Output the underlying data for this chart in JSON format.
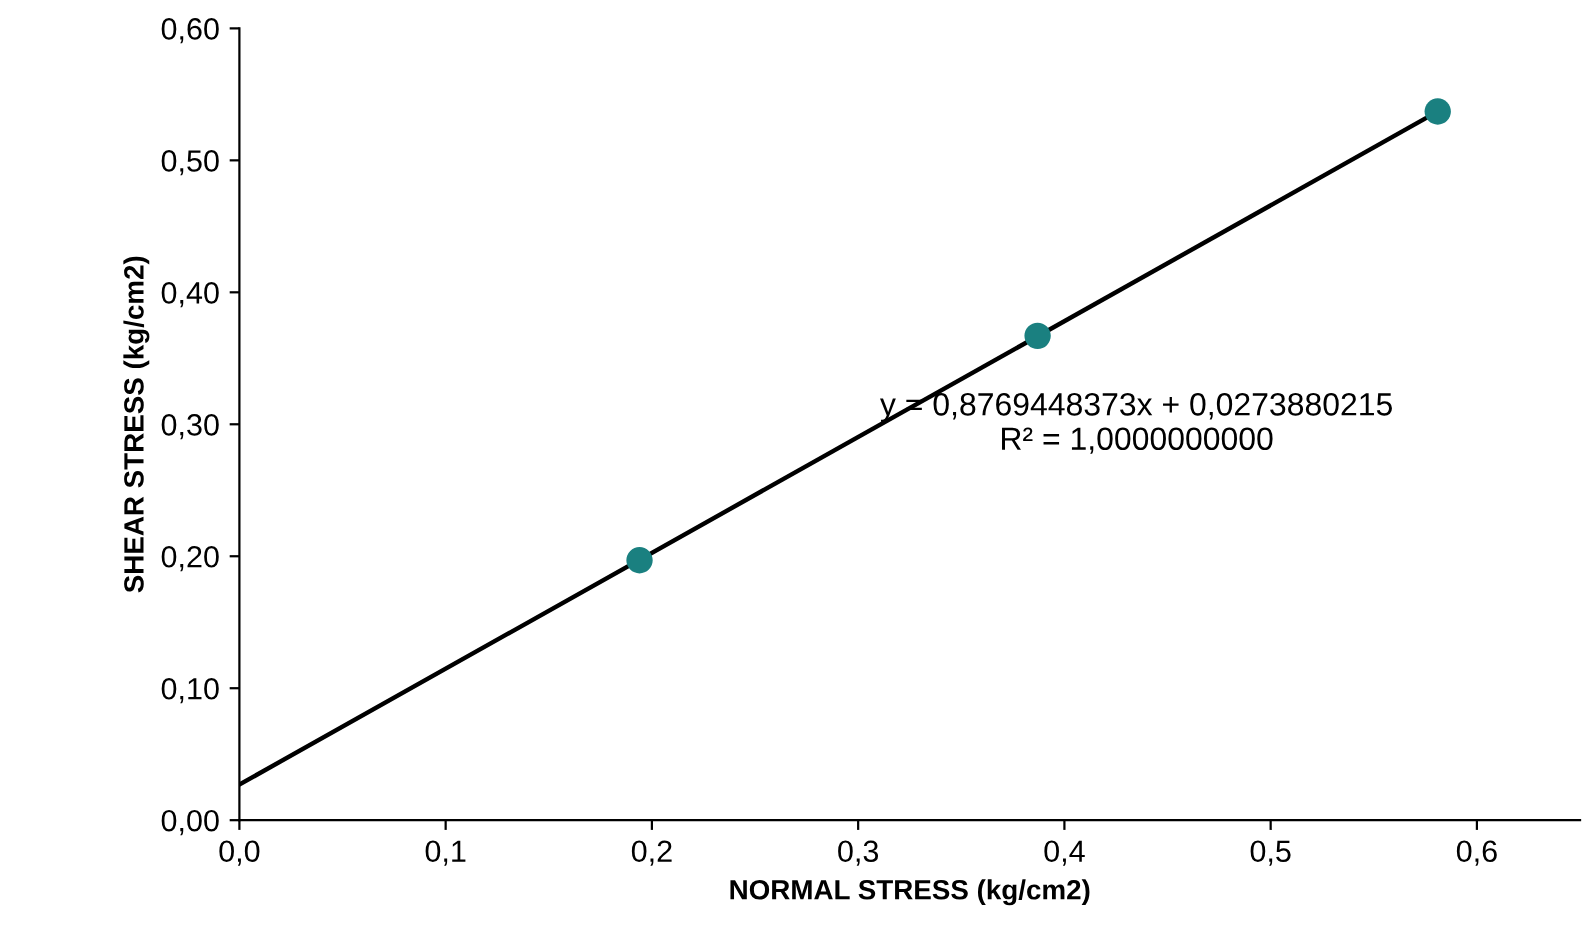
{
  "chart_data": {
    "type": "scatter",
    "xlabel": "NORMAL STRESS (kg/cm2)",
    "ylabel": "SHEAR STRESS (kg/cm2)",
    "series": [
      {
        "color": "#1a8080",
        "x": [
          0.194,
          0.387,
          0.581
        ],
        "values": [
          0.197,
          0.367,
          0.537
        ],
        "marker": "circle"
      },
      {
        "type": "line",
        "color": "#000000",
        "x": [
          0,
          0.581
        ],
        "values": [
          0.027,
          0.537
        ],
        "marker": "none"
      }
    ],
    "xlim": [
      0,
      0.65
    ],
    "ylim": [
      0,
      0.6
    ],
    "xticks": [
      {
        "value": 0,
        "label": "0,0"
      },
      {
        "value": 0.1,
        "label": "0,1"
      },
      {
        "value": 0.2,
        "label": "0,2"
      },
      {
        "value": 0.3,
        "label": "0,3"
      },
      {
        "value": 0.4,
        "label": "0,4"
      },
      {
        "value": 0.5,
        "label": "0,5"
      },
      {
        "value": 0.6,
        "label": "0,6"
      }
    ],
    "yticks": [
      {
        "value": 0,
        "label": "0,00"
      },
      {
        "value": 0.1,
        "label": "0,10"
      },
      {
        "value": 0.2,
        "label": "0,20"
      },
      {
        "value": 0.3,
        "label": "0,30"
      },
      {
        "value": 0.4,
        "label": "0,40"
      },
      {
        "value": 0.5,
        "label": "0,50"
      },
      {
        "value": 0.6,
        "label": "0,60"
      }
    ],
    "annotations": [
      "y = 0,8769448373x + 0,0273880215\nR² = 1,0000000000"
    ],
    "grid": false,
    "legend": false
  }
}
